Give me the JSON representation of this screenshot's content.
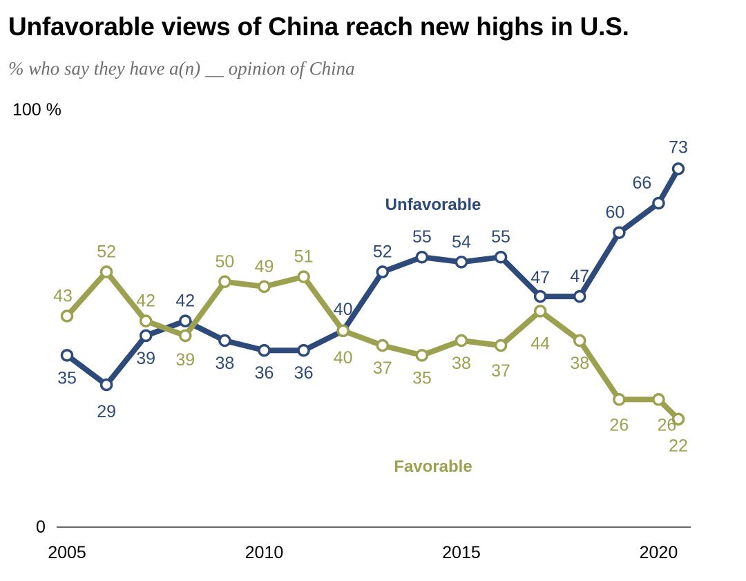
{
  "chart_data": {
    "type": "line",
    "title": "Unfavorable views of China reach new highs in U.S.",
    "subtitle": "% who say they have a(n) __ opinion of China",
    "y_top_label": "100 %",
    "y_bottom_label": "0",
    "ylim": [
      0,
      100
    ],
    "xlim": [
      2005,
      2020.5
    ],
    "x_ticks": [
      "2005",
      "2010",
      "2015",
      "2020"
    ],
    "series": [
      {
        "name": "Unfavorable",
        "color": "#2d4a7a",
        "x": [
          2005,
          2006,
          2007,
          2008,
          2009,
          2010,
          2011,
          2012,
          2013,
          2014,
          2015,
          2016,
          2017,
          2018,
          2019,
          2020,
          2020.5
        ],
        "values": [
          35,
          29,
          39,
          42,
          38,
          36,
          36,
          40,
          52,
          55,
          54,
          55,
          47,
          47,
          60,
          66,
          73
        ]
      },
      {
        "name": "Favorable",
        "color": "#9ba14f",
        "x": [
          2005,
          2006,
          2007,
          2008,
          2009,
          2010,
          2011,
          2012,
          2013,
          2014,
          2015,
          2016,
          2017,
          2018,
          2019,
          2020,
          2020.5
        ],
        "values": [
          43,
          52,
          42,
          39,
          50,
          49,
          51,
          40,
          37,
          35,
          38,
          37,
          44,
          38,
          26,
          26,
          22
        ]
      }
    ]
  }
}
